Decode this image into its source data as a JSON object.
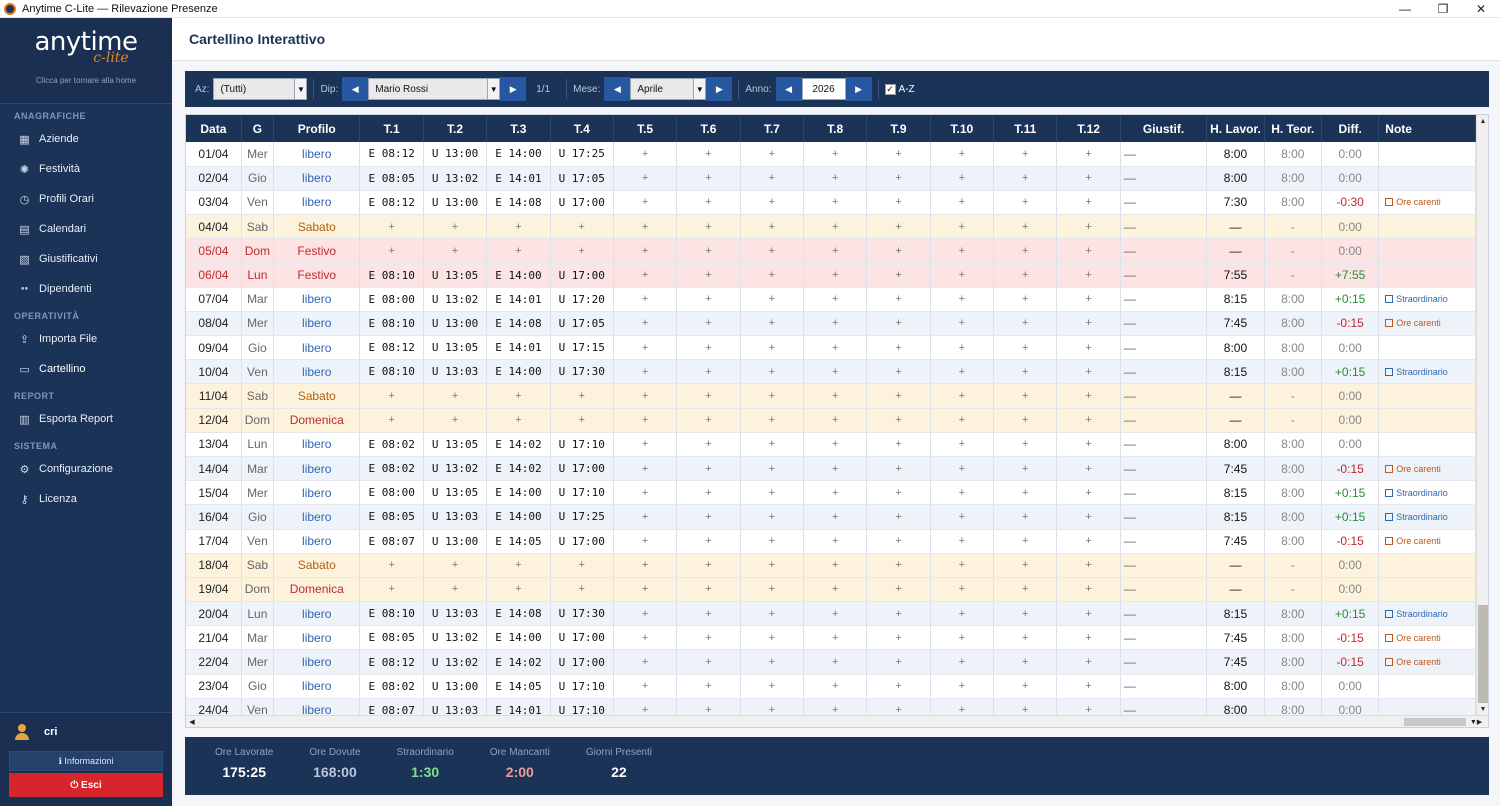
{
  "window": {
    "title": "Anytime C-Lite — Rilevazione Presenze"
  },
  "sidebar": {
    "logo_main": "anytime",
    "logo_sub": "c-lite",
    "logo_hint": "Clicca per tornare alla home",
    "sections": [
      {
        "title": "ANAGRAFICHE",
        "items": [
          {
            "label": "Aziende",
            "icon": "building-icon"
          },
          {
            "label": "Festività",
            "icon": "party-icon"
          },
          {
            "label": "Profili Orari",
            "icon": "clock-icon"
          },
          {
            "label": "Calendari",
            "icon": "calendar-icon"
          },
          {
            "label": "Giustificativi",
            "icon": "document-icon"
          },
          {
            "label": "Dipendenti",
            "icon": "people-icon"
          }
        ]
      },
      {
        "title": "OPERATIVITÀ",
        "items": [
          {
            "label": "Importa File",
            "icon": "import-icon"
          },
          {
            "label": "Cartellino",
            "icon": "card-icon"
          }
        ]
      },
      {
        "title": "REPORT",
        "items": [
          {
            "label": "Esporta Report",
            "icon": "chart-icon"
          }
        ]
      },
      {
        "title": "SISTEMA",
        "items": [
          {
            "label": "Configurazione",
            "icon": "gear-icon"
          },
          {
            "label": "Licenza",
            "icon": "key-icon"
          }
        ]
      }
    ],
    "user": "cri",
    "info_label": "ℹ Informazioni",
    "exit_label": "⏻ Esci"
  },
  "header": {
    "title": "Cartellino Interattivo"
  },
  "toolbar": {
    "az_label": "Az:",
    "az_value": "(Tutti)",
    "dip_label": "Dip:",
    "dip_value": "Mario Rossi",
    "page_info": "1/1",
    "mese_label": "Mese:",
    "mese_value": "Aprile",
    "anno_label": "Anno:",
    "anno_value": "2026",
    "az_sort_label": "A-Z"
  },
  "table": {
    "columns": [
      "Data",
      "G",
      "Profilo",
      "T.1",
      "T.2",
      "T.3",
      "T.4",
      "T.5",
      "T.6",
      "T.7",
      "T.8",
      "T.9",
      "T.10",
      "T.11",
      "T.12",
      "Giustif.",
      "H. Lavor.",
      "H. Teor.",
      "Diff.",
      "Note"
    ],
    "rows": [
      {
        "date": "01/04",
        "day": "Mer",
        "profile": "libero",
        "t": [
          "E 08:12",
          "U 13:00",
          "E 14:00",
          "U 17:25"
        ],
        "giust": "—",
        "hl": "8:00",
        "ht": "8:00",
        "diff": "0:00",
        "note": "",
        "kind": "normal"
      },
      {
        "date": "02/04",
        "day": "Gio",
        "profile": "libero",
        "t": [
          "E 08:05",
          "U 13:02",
          "E 14:01",
          "U 17:05"
        ],
        "giust": "—",
        "hl": "8:00",
        "ht": "8:00",
        "diff": "0:00",
        "note": "",
        "kind": "alt"
      },
      {
        "date": "03/04",
        "day": "Ven",
        "profile": "libero",
        "t": [
          "E 08:12",
          "U 13:00",
          "E 14:08",
          "U 17:00"
        ],
        "giust": "—",
        "hl": "7:30",
        "ht": "8:00",
        "diff": "-0:30",
        "note": "Ore carenti",
        "kind": "normal"
      },
      {
        "date": "04/04",
        "day": "Sab",
        "profile": "Sabato",
        "t": [],
        "giust": "—",
        "hl": "—",
        "ht": "-",
        "diff": "0:00",
        "note": "",
        "kind": "weekend"
      },
      {
        "date": "05/04",
        "day": "Dom",
        "profile": "Festivo",
        "t": [],
        "giust": "—",
        "hl": "—",
        "ht": "-",
        "diff": "0:00",
        "note": "",
        "kind": "holiday"
      },
      {
        "date": "06/04",
        "day": "Lun",
        "profile": "Festivo",
        "t": [
          "E 08:10",
          "U 13:05",
          "E 14:00",
          "U 17:00"
        ],
        "giust": "—",
        "hl": "7:55",
        "ht": "-",
        "diff": "+7:55",
        "note": "",
        "kind": "holiday"
      },
      {
        "date": "07/04",
        "day": "Mar",
        "profile": "libero",
        "t": [
          "E 08:00",
          "U 13:02",
          "E 14:01",
          "U 17:20"
        ],
        "giust": "—",
        "hl": "8:15",
        "ht": "8:00",
        "diff": "+0:15",
        "note": "Straordinario",
        "kind": "normal"
      },
      {
        "date": "08/04",
        "day": "Mer",
        "profile": "libero",
        "t": [
          "E 08:10",
          "U 13:00",
          "E 14:08",
          "U 17:05"
        ],
        "giust": "—",
        "hl": "7:45",
        "ht": "8:00",
        "diff": "-0:15",
        "note": "Ore carenti",
        "kind": "alt"
      },
      {
        "date": "09/04",
        "day": "Gio",
        "profile": "libero",
        "t": [
          "E 08:12",
          "U 13:05",
          "E 14:01",
          "U 17:15"
        ],
        "giust": "—",
        "hl": "8:00",
        "ht": "8:00",
        "diff": "0:00",
        "note": "",
        "kind": "normal"
      },
      {
        "date": "10/04",
        "day": "Ven",
        "profile": "libero",
        "t": [
          "E 08:10",
          "U 13:03",
          "E 14:00",
          "U 17:30"
        ],
        "giust": "—",
        "hl": "8:15",
        "ht": "8:00",
        "diff": "+0:15",
        "note": "Straordinario",
        "kind": "alt"
      },
      {
        "date": "11/04",
        "day": "Sab",
        "profile": "Sabato",
        "t": [],
        "giust": "—",
        "hl": "—",
        "ht": "-",
        "diff": "0:00",
        "note": "",
        "kind": "weekend"
      },
      {
        "date": "12/04",
        "day": "Dom",
        "profile": "Domenica",
        "t": [],
        "giust": "—",
        "hl": "—",
        "ht": "-",
        "diff": "0:00",
        "note": "",
        "kind": "weekend"
      },
      {
        "date": "13/04",
        "day": "Lun",
        "profile": "libero",
        "t": [
          "E 08:02",
          "U 13:05",
          "E 14:02",
          "U 17:10"
        ],
        "giust": "—",
        "hl": "8:00",
        "ht": "8:00",
        "diff": "0:00",
        "note": "",
        "kind": "normal"
      },
      {
        "date": "14/04",
        "day": "Mar",
        "profile": "libero",
        "t": [
          "E 08:02",
          "U 13:02",
          "E 14:02",
          "U 17:00"
        ],
        "giust": "—",
        "hl": "7:45",
        "ht": "8:00",
        "diff": "-0:15",
        "note": "Ore carenti",
        "kind": "alt"
      },
      {
        "date": "15/04",
        "day": "Mer",
        "profile": "libero",
        "t": [
          "E 08:00",
          "U 13:05",
          "E 14:00",
          "U 17:10"
        ],
        "giust": "—",
        "hl": "8:15",
        "ht": "8:00",
        "diff": "+0:15",
        "note": "Straordinario",
        "kind": "normal"
      },
      {
        "date": "16/04",
        "day": "Gio",
        "profile": "libero",
        "t": [
          "E 08:05",
          "U 13:03",
          "E 14:00",
          "U 17:25"
        ],
        "giust": "—",
        "hl": "8:15",
        "ht": "8:00",
        "diff": "+0:15",
        "note": "Straordinario",
        "kind": "alt"
      },
      {
        "date": "17/04",
        "day": "Ven",
        "profile": "libero",
        "t": [
          "E 08:07",
          "U 13:00",
          "E 14:05",
          "U 17:00"
        ],
        "giust": "—",
        "hl": "7:45",
        "ht": "8:00",
        "diff": "-0:15",
        "note": "Ore carenti",
        "kind": "normal"
      },
      {
        "date": "18/04",
        "day": "Sab",
        "profile": "Sabato",
        "t": [],
        "giust": "—",
        "hl": "—",
        "ht": "-",
        "diff": "0:00",
        "note": "",
        "kind": "weekend"
      },
      {
        "date": "19/04",
        "day": "Dom",
        "profile": "Domenica",
        "t": [],
        "giust": "—",
        "hl": "—",
        "ht": "-",
        "diff": "0:00",
        "note": "",
        "kind": "weekend"
      },
      {
        "date": "20/04",
        "day": "Lun",
        "profile": "libero",
        "t": [
          "E 08:10",
          "U 13:03",
          "E 14:08",
          "U 17:30"
        ],
        "giust": "—",
        "hl": "8:15",
        "ht": "8:00",
        "diff": "+0:15",
        "note": "Straordinario",
        "kind": "alt"
      },
      {
        "date": "21/04",
        "day": "Mar",
        "profile": "libero",
        "t": [
          "E 08:05",
          "U 13:02",
          "E 14:00",
          "U 17:00"
        ],
        "giust": "—",
        "hl": "7:45",
        "ht": "8:00",
        "diff": "-0:15",
        "note": "Ore carenti",
        "kind": "normal"
      },
      {
        "date": "22/04",
        "day": "Mer",
        "profile": "libero",
        "t": [
          "E 08:12",
          "U 13:02",
          "E 14:02",
          "U 17:00"
        ],
        "giust": "—",
        "hl": "7:45",
        "ht": "8:00",
        "diff": "-0:15",
        "note": "Ore carenti",
        "kind": "alt"
      },
      {
        "date": "23/04",
        "day": "Gio",
        "profile": "libero",
        "t": [
          "E 08:02",
          "U 13:00",
          "E 14:05",
          "U 17:10"
        ],
        "giust": "—",
        "hl": "8:00",
        "ht": "8:00",
        "diff": "0:00",
        "note": "",
        "kind": "normal"
      },
      {
        "date": "24/04",
        "day": "Ven",
        "profile": "libero",
        "t": [
          "E 08:07",
          "U 13:03",
          "E 14:01",
          "U 17:10"
        ],
        "giust": "—",
        "hl": "8:00",
        "ht": "8:00",
        "diff": "0:00",
        "note": "",
        "kind": "alt"
      }
    ]
  },
  "summary": [
    {
      "label": "Ore Lavorate",
      "value": "175:25",
      "color": "#ffffff"
    },
    {
      "label": "Ore Dovute",
      "value": "168:00",
      "color": "#b8c6de"
    },
    {
      "label": "Straordinario",
      "value": "1:30",
      "color": "#7fe08a"
    },
    {
      "label": "Ore Mancanti",
      "value": "2:00",
      "color": "#f29a9a"
    },
    {
      "label": "Giorni Presenti",
      "value": "22",
      "color": "#ffffff"
    }
  ]
}
